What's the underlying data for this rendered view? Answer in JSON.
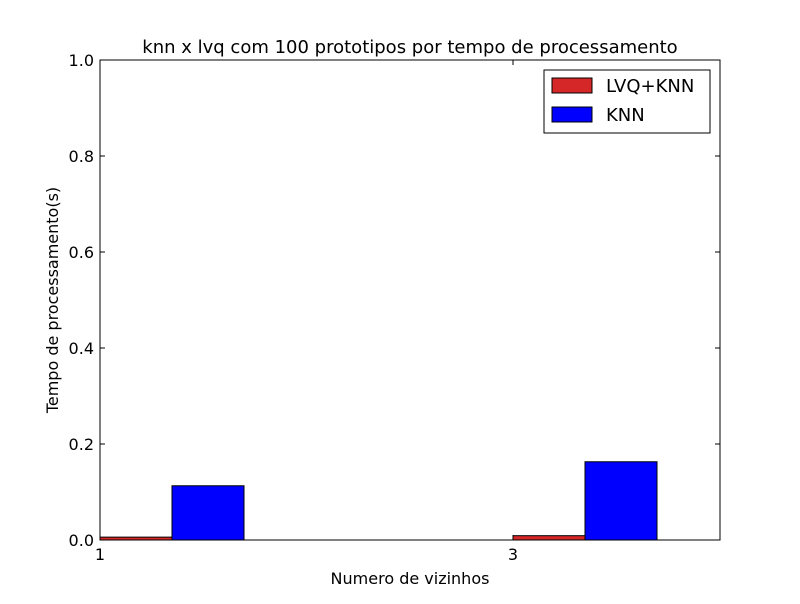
{
  "chart_data": {
    "type": "bar",
    "title": "knn x lvq com 100 prototipos por tempo de processamento",
    "xlabel": "Numero de vizinhos",
    "ylabel": "Tempo de processamento(s)",
    "categories": [
      "1",
      "3"
    ],
    "series": [
      {
        "name": "LVQ+KNN",
        "color": "#d62728",
        "values": [
          0.006,
          0.009
        ]
      },
      {
        "name": "KNN",
        "color": "#0000ff",
        "values": [
          0.113,
          0.163
        ]
      }
    ],
    "ylim": [
      0.0,
      1.0
    ],
    "yticks": [
      "0.0",
      "0.2",
      "0.4",
      "0.6",
      "0.8",
      "1.0"
    ],
    "grid": false,
    "legend_position": "top-right"
  }
}
